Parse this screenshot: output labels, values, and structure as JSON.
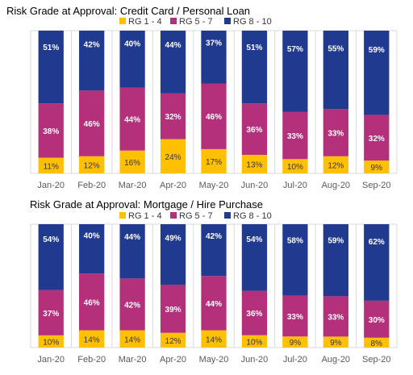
{
  "colors": {
    "low": "#FFC000",
    "mid": "#B5307A",
    "high": "#1F3A8F",
    "grid": "#D9D9D9",
    "axis_text": "#595959",
    "title_text": "#000000"
  },
  "chart_data": [
    {
      "type": "bar",
      "stacked": true,
      "normalized": true,
      "title": "Risk Grade at Approval: Credit Card / Personal Loan",
      "categories": [
        "Jan-20",
        "Feb-20",
        "Mar-20",
        "Apr-20",
        "May-20",
        "Jun-20",
        "Jul-20",
        "Aug-20",
        "Sep-20"
      ],
      "series": [
        {
          "name": "RG 1 - 4",
          "values": [
            11,
            12,
            16,
            24,
            17,
            13,
            10,
            12,
            9
          ],
          "labels": [
            "11%",
            "12%",
            "16%",
            "24%",
            "17%",
            "13%",
            "10%",
            "12%",
            "9%"
          ]
        },
        {
          "name": "RG 5 - 7",
          "values": [
            38,
            46,
            44,
            32,
            46,
            36,
            33,
            33,
            32
          ],
          "labels": [
            "38%",
            "46%",
            "44%",
            "32%",
            "46%",
            "36%",
            "33%",
            "33%",
            "32%"
          ]
        },
        {
          "name": "RG 8 - 10",
          "values": [
            51,
            42,
            40,
            44,
            37,
            51,
            57,
            55,
            59
          ],
          "labels": [
            "51%",
            "42%",
            "40%",
            "44%",
            "37%",
            "51%",
            "57%",
            "55%",
            "59%"
          ]
        }
      ],
      "legend_position": "top",
      "ylim": [
        0,
        100
      ],
      "grid": "vertical"
    },
    {
      "type": "bar",
      "stacked": true,
      "normalized": true,
      "title": "Risk Grade at Approval: Mortgage / Hire Purchase",
      "categories": [
        "Jan-20",
        "Feb-20",
        "Mar-20",
        "Apr-20",
        "May-20",
        "Jun-20",
        "Jul-20",
        "Aug-20",
        "Sep-20"
      ],
      "series": [
        {
          "name": "RG 1 - 4",
          "values": [
            10,
            14,
            14,
            12,
            14,
            10,
            9,
            9,
            8
          ],
          "labels": [
            "10%",
            "14%",
            "14%",
            "12%",
            "14%",
            "10%",
            "9%",
            "9%",
            "8%"
          ]
        },
        {
          "name": "RG 5 - 7",
          "values": [
            37,
            46,
            42,
            39,
            44,
            36,
            33,
            33,
            30
          ],
          "labels": [
            "37%",
            "46%",
            "42%",
            "39%",
            "44%",
            "36%",
            "33%",
            "33%",
            "30%"
          ]
        },
        {
          "name": "RG 8 - 10",
          "values": [
            54,
            40,
            44,
            49,
            42,
            54,
            58,
            59,
            62
          ],
          "labels": [
            "54%",
            "40%",
            "44%",
            "49%",
            "42%",
            "54%",
            "58%",
            "59%",
            "62%"
          ]
        }
      ],
      "legend_position": "top",
      "ylim": [
        0,
        100
      ],
      "grid": "vertical"
    }
  ]
}
